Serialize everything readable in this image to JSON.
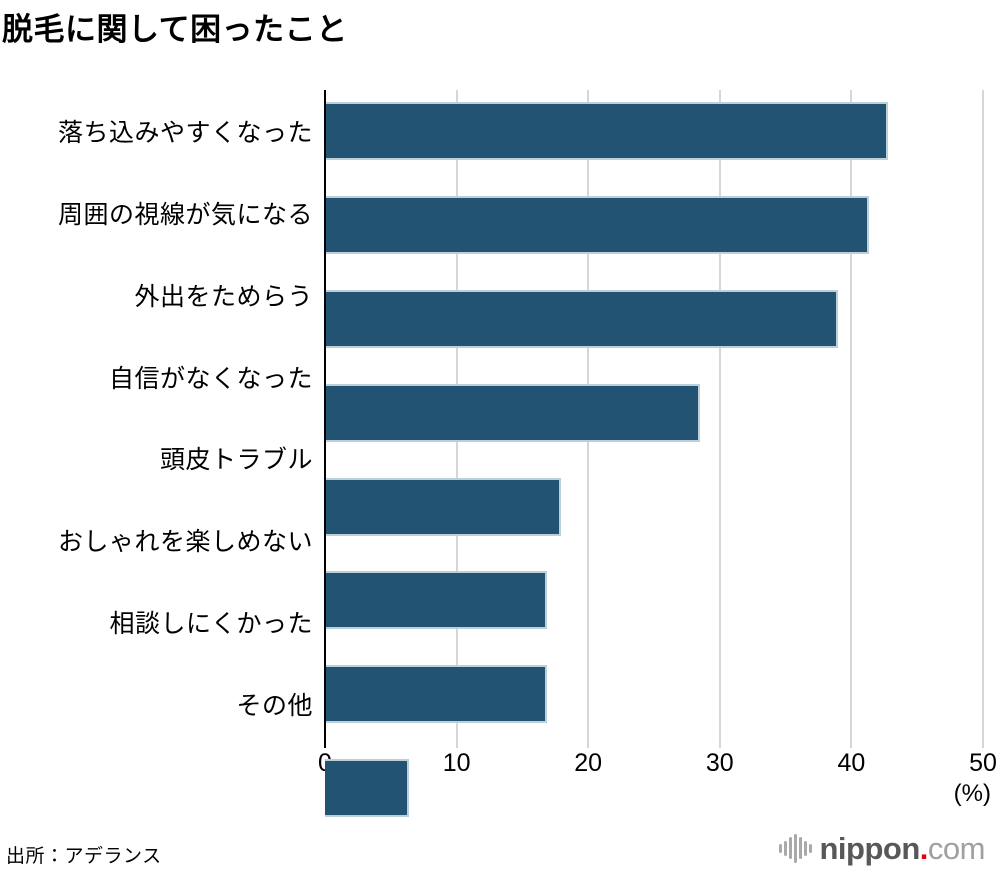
{
  "title": "脱毛に関して困ったこと",
  "chart_data": {
    "type": "bar",
    "orientation": "horizontal",
    "title": "脱毛に関して困ったこと",
    "categories": [
      "落ち込みやすくなった",
      "周囲の視線が気になる",
      "外出をためらう",
      "自信がなくなった",
      "頭皮トラブル",
      "おしゃれを楽しめない",
      "相談しにくかった",
      "その他"
    ],
    "values": [
      42.8,
      41.3,
      39.0,
      28.5,
      17.9,
      16.9,
      16.9,
      6.4
    ],
    "x_ticks": [
      0,
      10,
      20,
      30,
      40,
      50
    ],
    "xlim": [
      0,
      50
    ],
    "xlabel": "(%)",
    "ylabel": "",
    "grid": true,
    "legend": false,
    "bar_color": "#235373",
    "bar_border_color": "#bcd0da",
    "gridline_color": "#d6d6d6",
    "axis_color": "#000000"
  },
  "source": "出所：アデランス",
  "logo": {
    "brand": "nippon",
    "dot": ".",
    "tld": "com",
    "brand_color": "#595757",
    "dot_color": "#e60012",
    "tld_color": "#9fa0a0",
    "icon": "soundwave-icon"
  }
}
